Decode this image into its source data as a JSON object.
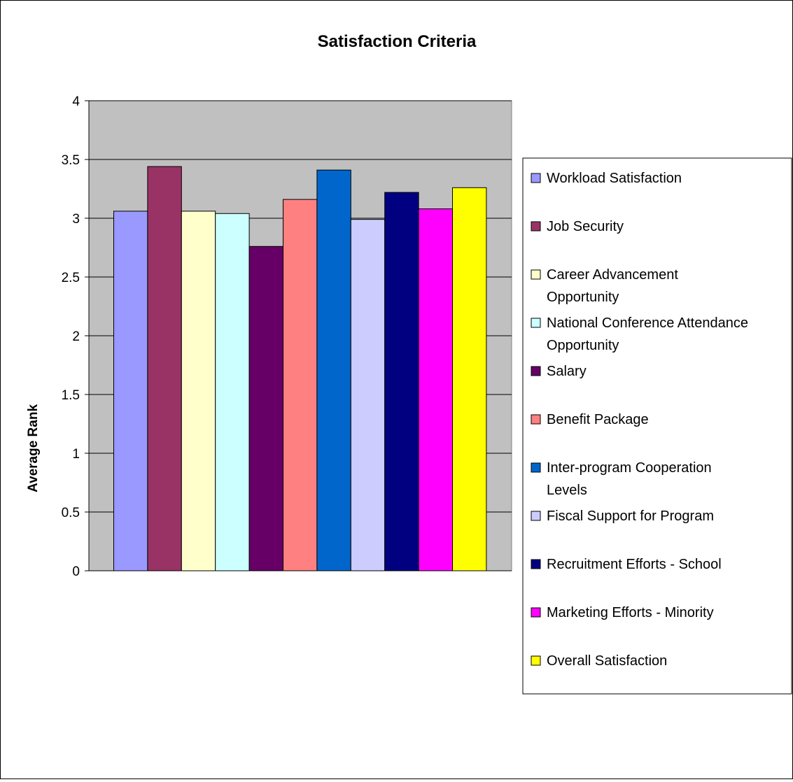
{
  "chart_data": {
    "type": "bar",
    "title": "Satisfaction Criteria",
    "xlabel": "",
    "ylabel": "Average Rank",
    "ylim": [
      0,
      4
    ],
    "yticks": [
      "0",
      "0.5",
      "1",
      "1.5",
      "2",
      "2.5",
      "3",
      "3.5",
      "4"
    ],
    "grid": true,
    "legend_position": "right",
    "plot_background": "#c0c0c0",
    "series": [
      {
        "name": "Workload Satisfaction",
        "value": 3.06,
        "color": "#9999ff",
        "legend_lines": [
          "Workload Satisfaction"
        ]
      },
      {
        "name": "Job Security",
        "value": 3.44,
        "color": "#993366",
        "legend_lines": [
          "Job Security"
        ]
      },
      {
        "name": "Career Advancement Opportunity",
        "value": 3.06,
        "color": "#ffffcc",
        "legend_lines": [
          "Career Advancement",
          "Opportunity"
        ]
      },
      {
        "name": "National Conference Attendance Opportunity",
        "value": 3.04,
        "color": "#ccffff",
        "legend_lines": [
          "National Conference Attendance",
          "Opportunity"
        ]
      },
      {
        "name": "Salary",
        "value": 2.76,
        "color": "#660066",
        "legend_lines": [
          "Salary"
        ]
      },
      {
        "name": "Benefit Package",
        "value": 3.16,
        "color": "#ff8080",
        "legend_lines": [
          "Benefit Package"
        ]
      },
      {
        "name": "Inter-program Cooperation Levels",
        "value": 3.41,
        "color": "#0066cc",
        "legend_lines": [
          "Inter-program Cooperation",
          "Levels"
        ]
      },
      {
        "name": "Fiscal Support for Program",
        "value": 2.99,
        "color": "#ccccff",
        "legend_lines": [
          "Fiscal Support for Program"
        ]
      },
      {
        "name": "Recruitment Efforts - School",
        "value": 3.22,
        "color": "#000080",
        "legend_lines": [
          "Recruitment Efforts - School"
        ]
      },
      {
        "name": "Marketing Efforts - Minority",
        "value": 3.08,
        "color": "#ff00ff",
        "legend_lines": [
          "Marketing Efforts - Minority"
        ]
      },
      {
        "name": "Overall Satisfaction",
        "value": 3.26,
        "color": "#ffff00",
        "legend_lines": [
          "Overall Satisfaction"
        ]
      }
    ]
  }
}
